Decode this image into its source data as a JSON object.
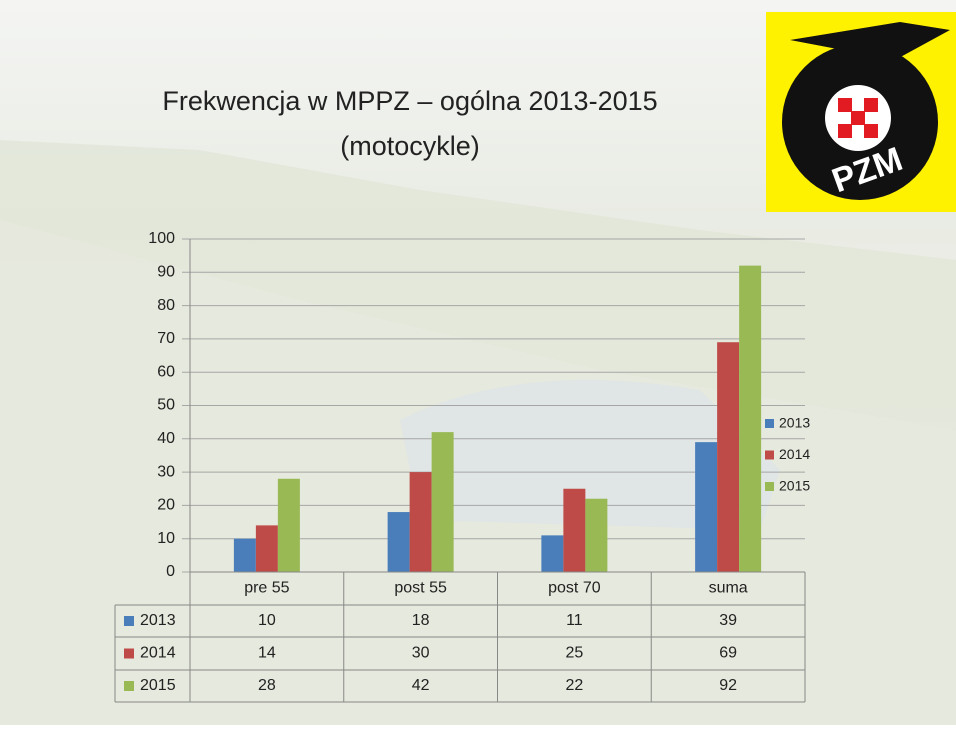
{
  "chart_data": {
    "type": "bar",
    "title": "Frekwencja w MPPZ – ogólna 2013-2015",
    "subtitle": "(motocykle)",
    "categories": [
      "pre 55",
      "post 55",
      "post 70",
      "suma"
    ],
    "series": [
      {
        "name": "2013",
        "color": "#4a7ebb",
        "values": [
          10,
          18,
          11,
          39
        ]
      },
      {
        "name": "2014",
        "color": "#be4b48",
        "values": [
          14,
          30,
          25,
          69
        ]
      },
      {
        "name": "2015",
        "color": "#98b954",
        "values": [
          28,
          42,
          22,
          92
        ]
      }
    ],
    "ylim": [
      0,
      100
    ],
    "yticks": [
      0,
      10,
      20,
      30,
      40,
      50,
      60,
      70,
      80,
      90,
      100
    ],
    "grid": true,
    "legend": "right",
    "data_table": true
  },
  "logo": {
    "text": "PZM"
  }
}
